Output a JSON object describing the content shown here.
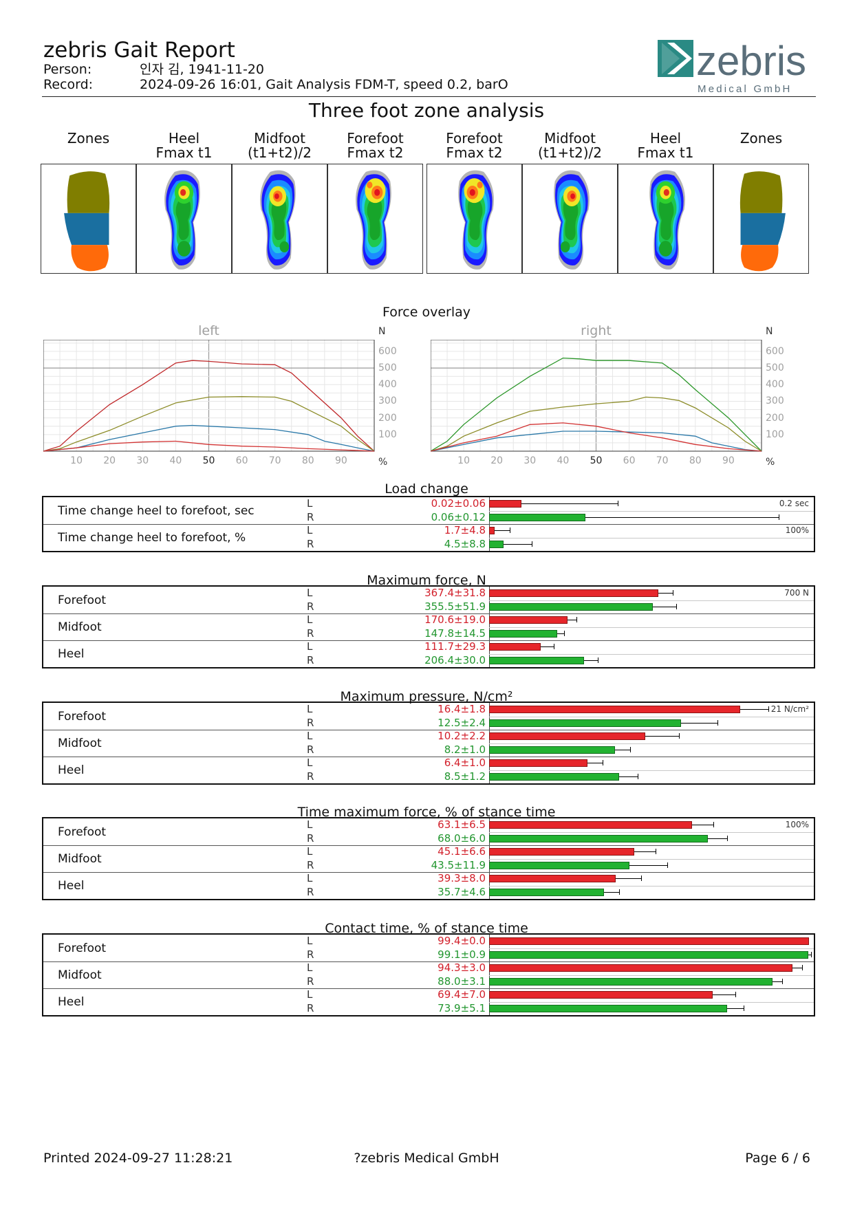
{
  "header": {
    "title": "zebris Gait Report",
    "person_label": "Person:",
    "person_value": "인자 김, 1941-11-20",
    "record_label": "Record:",
    "record_value": "2024-09-26 16:01, Gait Analysis FDM-T, speed 0.2, barO",
    "logo_word": "zebris",
    "logo_sub": "Medical GmbH"
  },
  "section_title": "Three foot zone analysis",
  "foot_columns": [
    {
      "l1": "Zones",
      "l2": "",
      "kind": "zones-left"
    },
    {
      "l1": "Heel",
      "l2": "Fmax t1",
      "kind": "heat-left"
    },
    {
      "l1": "Midfoot",
      "l2": "(t1+t2)/2",
      "kind": "heat-left"
    },
    {
      "l1": "Forefoot",
      "l2": "Fmax t2",
      "kind": "heat-left"
    },
    {
      "l1": "Forefoot",
      "l2": "Fmax t2",
      "kind": "heat-right"
    },
    {
      "l1": "Midfoot",
      "l2": "(t1+t2)/2",
      "kind": "heat-right"
    },
    {
      "l1": "Heel",
      "l2": "Fmax t1",
      "kind": "heat-right"
    },
    {
      "l1": "Zones",
      "l2": "",
      "kind": "zones-right"
    }
  ],
  "colors": {
    "forefoot_zone": "#807e00",
    "midfoot_zone": "#1a6fa0",
    "heel_zone": "#ff6a0a",
    "left": "#e6262b",
    "right": "#22b231",
    "left_text": "#d21f2a",
    "right_text": "#22962f"
  },
  "force_overlay": {
    "title": "Force overlay",
    "unit_y": "N",
    "unit_x": "%",
    "y_ticks": [
      "600",
      "500",
      "400",
      "300",
      "200",
      "100"
    ],
    "x_ticks": [
      "10",
      "20",
      "30",
      "40",
      "50",
      "60",
      "70",
      "80",
      "90"
    ]
  },
  "chart_data": [
    {
      "type": "line",
      "title": "left",
      "xlabel": "%",
      "ylabel": "N",
      "xlim": [
        0,
        100
      ],
      "ylim": [
        0,
        670
      ],
      "grid": true,
      "series": [
        {
          "color": "#c0282a",
          "x": [
            0,
            5,
            10,
            20,
            30,
            40,
            45,
            50,
            60,
            70,
            75,
            80,
            90,
            95,
            100
          ],
          "y": [
            0,
            30,
            120,
            280,
            400,
            530,
            545,
            540,
            525,
            520,
            470,
            380,
            200,
            90,
            0
          ]
        },
        {
          "color": "#8c8c28",
          "x": [
            0,
            5,
            10,
            20,
            30,
            40,
            50,
            60,
            70,
            75,
            80,
            90,
            95,
            100
          ],
          "y": [
            0,
            15,
            55,
            125,
            210,
            290,
            325,
            328,
            325,
            300,
            250,
            150,
            70,
            0
          ]
        },
        {
          "color": "#2a78a8",
          "x": [
            0,
            10,
            20,
            30,
            40,
            45,
            50,
            60,
            70,
            80,
            85,
            90,
            95,
            100
          ],
          "y": [
            0,
            20,
            70,
            110,
            150,
            155,
            150,
            140,
            130,
            100,
            60,
            40,
            20,
            0
          ]
        },
        {
          "color": "#d23232",
          "x": [
            0,
            10,
            20,
            30,
            40,
            50,
            60,
            70,
            80,
            90,
            100
          ],
          "y": [
            0,
            20,
            45,
            55,
            60,
            40,
            30,
            25,
            15,
            8,
            0
          ]
        }
      ]
    },
    {
      "type": "line",
      "title": "right",
      "xlabel": "%",
      "ylabel": "N",
      "xlim": [
        0,
        100
      ],
      "ylim": [
        0,
        670
      ],
      "grid": true,
      "series": [
        {
          "color": "#2a9628",
          "x": [
            0,
            5,
            10,
            20,
            30,
            40,
            45,
            50,
            60,
            70,
            75,
            80,
            90,
            95,
            100
          ],
          "y": [
            0,
            60,
            160,
            320,
            450,
            560,
            555,
            545,
            545,
            530,
            460,
            370,
            200,
            100,
            0
          ]
        },
        {
          "color": "#8c8c28",
          "x": [
            0,
            5,
            10,
            20,
            30,
            40,
            50,
            60,
            65,
            70,
            75,
            80,
            90,
            95,
            100
          ],
          "y": [
            0,
            30,
            90,
            170,
            240,
            265,
            285,
            300,
            325,
            320,
            305,
            260,
            140,
            60,
            0
          ]
        },
        {
          "color": "#2a78a8",
          "x": [
            0,
            10,
            20,
            30,
            40,
            50,
            60,
            70,
            80,
            85,
            90,
            95,
            100
          ],
          "y": [
            0,
            40,
            80,
            100,
            120,
            120,
            115,
            110,
            90,
            50,
            30,
            10,
            0
          ]
        },
        {
          "color": "#d23232",
          "x": [
            0,
            10,
            20,
            30,
            40,
            50,
            60,
            70,
            80,
            90,
            100
          ],
          "y": [
            0,
            50,
            90,
            160,
            170,
            150,
            110,
            80,
            40,
            15,
            0
          ]
        }
      ]
    }
  ],
  "tables": [
    {
      "title": "Load change",
      "scale_label": "0.2 sec",
      "max": 0.2,
      "rows": [
        {
          "label": "Time change heel to forefoot, sec",
          "L": {
            "text": "0.02±0.06",
            "value": 0.02,
            "sd": 0.06
          },
          "R": {
            "text": "0.06±0.12",
            "value": 0.06,
            "sd": 0.12
          }
        },
        {
          "label": "Time change heel to forefoot, %",
          "scale_label": "100%",
          "max": 100,
          "L": {
            "text": "1.7±4.8",
            "value": 1.7,
            "sd": 4.8
          },
          "R": {
            "text": "4.5±8.8",
            "value": 4.5,
            "sd": 8.8
          }
        }
      ]
    },
    {
      "title": "Maximum force, N",
      "scale_label": "700 N",
      "max": 700,
      "rows": [
        {
          "label": "Forefoot",
          "L": {
            "text": "367.4±31.8",
            "value": 367.4,
            "sd": 31.8
          },
          "R": {
            "text": "355.5±51.9",
            "value": 355.5,
            "sd": 51.9
          }
        },
        {
          "label": "Midfoot",
          "L": {
            "text": "170.6±19.0",
            "value": 170.6,
            "sd": 19.0
          },
          "R": {
            "text": "147.8±14.5",
            "value": 147.8,
            "sd": 14.5
          }
        },
        {
          "label": "Heel",
          "L": {
            "text": "111.7±29.3",
            "value": 111.7,
            "sd": 29.3
          },
          "R": {
            "text": "206.4±30.0",
            "value": 206.4,
            "sd": 30.0
          }
        }
      ]
    },
    {
      "title": "Maximum pressure, N/cm²",
      "scale_label": "21 N/cm²",
      "max": 21,
      "rows": [
        {
          "label": "Forefoot",
          "L": {
            "text": "16.4±1.8",
            "value": 16.4,
            "sd": 1.8
          },
          "R": {
            "text": "12.5±2.4",
            "value": 12.5,
            "sd": 2.4
          }
        },
        {
          "label": "Midfoot",
          "L": {
            "text": "10.2±2.2",
            "value": 10.2,
            "sd": 2.2
          },
          "R": {
            "text": "8.2±1.0",
            "value": 8.2,
            "sd": 1.0
          }
        },
        {
          "label": "Heel",
          "L": {
            "text": "6.4±1.0",
            "value": 6.4,
            "sd": 1.0
          },
          "R": {
            "text": "8.5±1.2",
            "value": 8.5,
            "sd": 1.2
          }
        }
      ]
    },
    {
      "title": "Time maximum force, % of stance time",
      "scale_label": "100%",
      "max": 100,
      "rows": [
        {
          "label": "Forefoot",
          "L": {
            "text": "63.1±6.5",
            "value": 63.1,
            "sd": 6.5
          },
          "R": {
            "text": "68.0±6.0",
            "value": 68.0,
            "sd": 6.0
          }
        },
        {
          "label": "Midfoot",
          "L": {
            "text": "45.1±6.6",
            "value": 45.1,
            "sd": 6.6
          },
          "R": {
            "text": "43.5±11.9",
            "value": 43.5,
            "sd": 11.9
          }
        },
        {
          "label": "Heel",
          "L": {
            "text": "39.3±8.0",
            "value": 39.3,
            "sd": 8.0
          },
          "R": {
            "text": "35.7±4.6",
            "value": 35.7,
            "sd": 4.6
          }
        }
      ]
    },
    {
      "title": "Contact time, % of stance time",
      "scale_label": "100%",
      "max": 100,
      "rows": [
        {
          "label": "Forefoot",
          "L": {
            "text": "99.4±0.0",
            "value": 99.4,
            "sd": 0.0
          },
          "R": {
            "text": "99.1±0.9",
            "value": 99.1,
            "sd": 0.9
          }
        },
        {
          "label": "Midfoot",
          "L": {
            "text": "94.3±3.0",
            "value": 94.3,
            "sd": 3.0
          },
          "R": {
            "text": "88.0±3.1",
            "value": 88.0,
            "sd": 3.1
          }
        },
        {
          "label": "Heel",
          "L": {
            "text": "69.4±7.0",
            "value": 69.4,
            "sd": 7.0
          },
          "R": {
            "text": "73.9±5.1",
            "value": 73.9,
            "sd": 5.1
          }
        }
      ]
    }
  ],
  "side_labels": {
    "left": "L",
    "right": "R"
  },
  "footer": {
    "printed": "Printed  2024-09-27 11:28:21",
    "company": "?zebris Medical GmbH",
    "page": "Page  6 / 6"
  }
}
